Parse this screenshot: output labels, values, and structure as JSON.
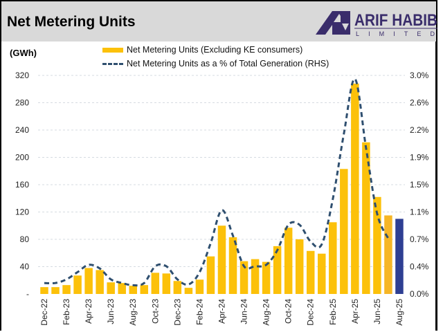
{
  "header": {
    "title": "Net Metering Units",
    "logo_text": "ARIF HABIB",
    "logo_subtext": "LIMITED"
  },
  "colors": {
    "bar": "#fcc10a",
    "bar_jul25": "#f6b626",
    "bar_latest": "#2e3f93",
    "line": "#2f4f6f",
    "header_bg": "#d9d9d9",
    "logo": "#3a2d6b"
  },
  "chart_data": {
    "type": "bar+line",
    "title": "Net Metering Units",
    "ylabel": "(GWh)",
    "ylim": [
      0,
      320
    ],
    "yticks": [
      "-",
      "40",
      "80",
      "120",
      "160",
      "200",
      "240",
      "280",
      "320"
    ],
    "y2lim": [
      0,
      3.0
    ],
    "y2ticks": [
      "0.0%",
      "0.4%",
      "0.7%",
      "1.1%",
      "1.5%",
      "1.9%",
      "2.2%",
      "2.6%",
      "3.0%"
    ],
    "grid": true,
    "legend_placement": "top-center",
    "categories": [
      "Dec-22",
      "Jan-23",
      "Feb-23",
      "Mar-23",
      "Apr-23",
      "May-23",
      "Jun-23",
      "Jul-23",
      "Aug-23",
      "Sep-23",
      "Oct-23",
      "Nov-23",
      "Dec-23",
      "Jan-24",
      "Feb-24",
      "Mar-24",
      "Apr-24",
      "May-24",
      "Jun-24",
      "Jul-24",
      "Aug-24",
      "Sep-24",
      "Oct-24",
      "Nov-24",
      "Dec-24",
      "Jan-25",
      "Feb-25",
      "Mar-25",
      "Apr-25",
      "May-25",
      "Jun-25",
      "Jul-25",
      "Aug-25"
    ],
    "xtick_labels": [
      "Dec-22",
      "",
      "Feb-23",
      "",
      "Apr-23",
      "",
      "Jun-23",
      "",
      "Aug-23",
      "",
      "Oct-23",
      "",
      "Dec-23",
      "",
      "Feb-24",
      "",
      "Apr-24",
      "",
      "Jun-24",
      "",
      "Aug-24",
      "",
      "Oct-24",
      "",
      "Dec-24",
      "",
      "Feb-25",
      "",
      "Apr-25",
      "",
      "Jun-25",
      "",
      "Aug-25"
    ],
    "series": [
      {
        "name": "Net Metering Units (Excluding KE consumers)",
        "type": "bar",
        "axis": "left",
        "values": [
          10,
          10,
          13,
          27,
          38,
          35,
          17,
          16,
          12,
          13,
          31,
          30,
          19,
          9,
          21,
          55,
          100,
          83,
          48,
          51,
          47,
          70,
          97,
          80,
          63,
          59,
          105,
          183,
          308,
          222,
          142,
          115,
          110
        ]
      },
      {
        "name": "Net Metering Units as a % of Total Generation (RHS)",
        "type": "line",
        "style": "dashed",
        "axis": "right",
        "values": [
          0.15,
          0.15,
          0.2,
          0.3,
          0.4,
          0.35,
          0.2,
          0.15,
          0.12,
          0.15,
          0.38,
          0.38,
          0.2,
          0.13,
          0.3,
          0.7,
          1.15,
          0.8,
          0.38,
          0.38,
          0.4,
          0.6,
          0.95,
          0.95,
          0.72,
          0.68,
          1.3,
          2.2,
          2.95,
          2.0,
          1.1,
          0.76,
          null
        ]
      }
    ]
  }
}
